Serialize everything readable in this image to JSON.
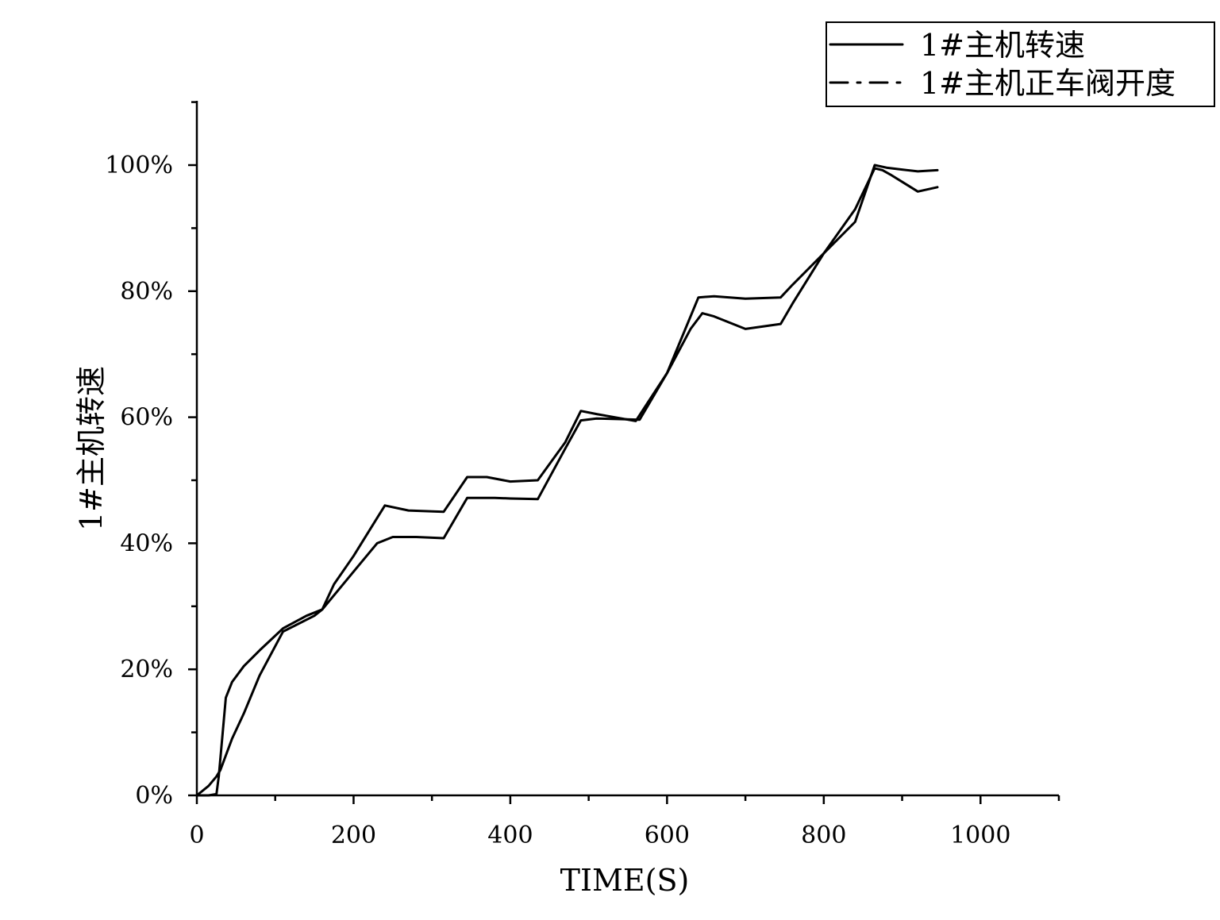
{
  "chart_data": {
    "type": "line",
    "title": "",
    "xlabel": "TIME(S)",
    "ylabel": "1#主机转速",
    "xlim": [
      0,
      1100
    ],
    "ylim": [
      0,
      110
    ],
    "xticks": [
      0,
      200,
      400,
      600,
      800,
      1000
    ],
    "xtick_labels": [
      "0",
      "200",
      "400",
      "600",
      "800",
      "1000"
    ],
    "yticks": [
      0,
      20,
      40,
      60,
      80,
      100
    ],
    "ytick_labels": [
      "0%",
      "20%",
      "40%",
      "60%",
      "80%",
      "100%"
    ],
    "grid": false,
    "legend_position": "top-right",
    "series": [
      {
        "name": "1#主机转速",
        "line_style": "solid",
        "x": [
          0,
          15,
          25,
          30,
          45,
          60,
          80,
          110,
          150,
          160,
          200,
          230,
          250,
          280,
          315,
          345,
          380,
          400,
          435,
          470,
          490,
          510,
          540,
          565,
          600,
          630,
          645,
          660,
          700,
          745,
          760,
          800,
          840,
          865,
          875,
          885,
          920,
          945
        ],
        "y": [
          0,
          1.5,
          3,
          4,
          9,
          13,
          19,
          26,
          28.5,
          29.5,
          35.5,
          40,
          41,
          41,
          40.8,
          47.2,
          47.2,
          47.1,
          47,
          55,
          59.5,
          59.8,
          59.7,
          59.6,
          67,
          74,
          76.5,
          76,
          74,
          74.8,
          78,
          86,
          93,
          99.5,
          99.2,
          98.5,
          95.8,
          96.5
        ]
      },
      {
        "name": "1#主机正车阀开度",
        "line_style": "dash-dot",
        "x": [
          0,
          15,
          25,
          28,
          33,
          37,
          45,
          60,
          80,
          110,
          140,
          160,
          175,
          200,
          230,
          240,
          270,
          315,
          345,
          370,
          400,
          435,
          470,
          490,
          510,
          560,
          600,
          640,
          660,
          700,
          745,
          760,
          800,
          840,
          865,
          880,
          900,
          920,
          945
        ],
        "y": [
          0,
          0,
          0.2,
          3,
          10,
          15.5,
          18,
          20.5,
          23,
          26.5,
          28.5,
          29.5,
          33.5,
          38,
          44,
          46,
          45.2,
          45,
          50.5,
          50.5,
          49.8,
          50,
          56,
          61,
          60.5,
          59.4,
          67,
          79,
          79.2,
          78.8,
          79,
          81,
          86,
          91,
          100,
          99.6,
          99.3,
          99,
          99.2
        ]
      }
    ]
  }
}
